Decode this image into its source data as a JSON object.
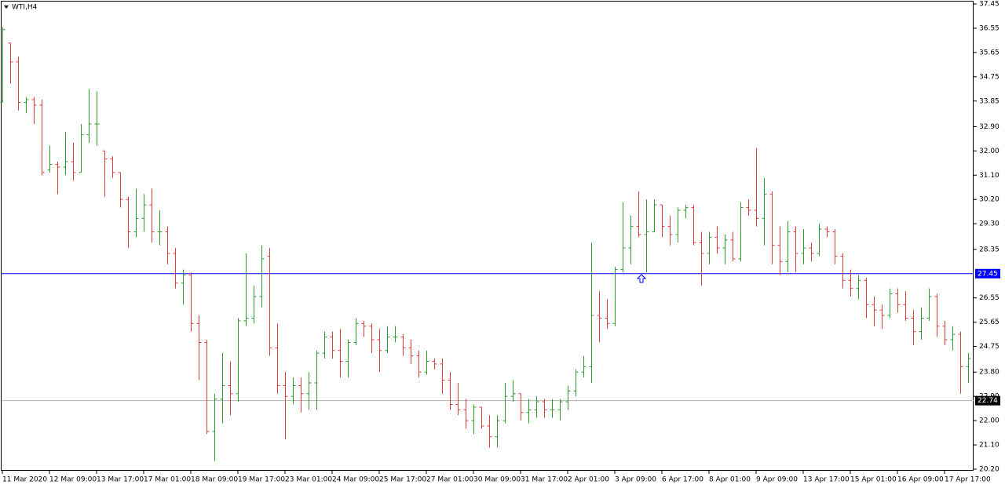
{
  "chart_data": {
    "type": "ohlc",
    "title": "WTI,H4",
    "up_color": "#2e9e2e",
    "down_color": "#e23b3b",
    "ylim": [
      20.2,
      37.45
    ],
    "yticks": [
      37.45,
      36.55,
      35.65,
      34.75,
      33.85,
      {
        "value": 32.9,
        "label": "32.90"
      },
      {
        "value": 32.0,
        "label": "32.00"
      },
      {
        "value": 31.1,
        "label": "31.10"
      },
      {
        "value": 30.2,
        "label": "30.20"
      },
      {
        "value": 29.3,
        "label": "29.30"
      },
      28.35,
      26.55,
      25.65,
      24.75,
      {
        "value": 23.8,
        "label": "23.80"
      },
      {
        "value": 22.9,
        "label": "22.90"
      },
      {
        "value": 22.0,
        "label": "22.00"
      },
      {
        "value": 21.1,
        "label": "21.10"
      },
      {
        "value": 20.2,
        "label": "20.20"
      }
    ],
    "hlines": [
      {
        "value": 27.45,
        "color": "#0000ff"
      },
      {
        "value": 22.74,
        "color": "#b0b0b0",
        "label_color": "#000000"
      }
    ],
    "categories": [
      "11 Mar 2020",
      null,
      null,
      null,
      null,
      null,
      "12 Mar 09:00",
      null,
      null,
      null,
      null,
      null,
      "13 Mar 17:00",
      null,
      null,
      null,
      null,
      null,
      "17 Mar 01:00",
      null,
      null,
      null,
      null,
      null,
      "18 Mar 09:00",
      null,
      null,
      null,
      null,
      null,
      "19 Mar 17:00",
      null,
      null,
      null,
      null,
      null,
      "23 Mar 01:00",
      null,
      null,
      null,
      null,
      null,
      "24 Mar 09:00",
      null,
      null,
      null,
      null,
      null,
      "25 Mar 17:00",
      null,
      null,
      null,
      null,
      null,
      "27 Mar 01:00",
      null,
      null,
      null,
      null,
      null,
      "30 Mar 09:00",
      null,
      null,
      null,
      null,
      null,
      "31 Mar 17:00",
      null,
      null,
      null,
      null,
      null,
      "2 Apr 01:00",
      null,
      null,
      null,
      null,
      null,
      "3 Apr 09:00",
      null,
      null,
      null,
      null,
      null,
      "6 Apr 17:00",
      null,
      null,
      null,
      null,
      null,
      "8 Apr 01:00",
      null,
      null,
      null,
      null,
      null,
      "9 Apr 09:00",
      null,
      null,
      null,
      null,
      null,
      "13 Apr 17:00",
      null,
      null,
      null,
      null,
      null,
      "15 Apr 01:00",
      null,
      null,
      null,
      null,
      null,
      "16 Apr 09:00",
      null,
      null,
      null,
      null,
      null,
      "17 Apr 17:00",
      null,
      null,
      null
    ],
    "bars": [
      [
        33.8,
        36.6,
        33.8,
        36.5
      ],
      [
        36.0,
        36.0,
        34.5,
        35.3
      ],
      [
        35.3,
        35.5,
        33.5,
        33.8
      ],
      [
        33.8,
        34.0,
        33.4,
        33.9
      ],
      [
        33.9,
        34.0,
        33.0,
        33.7
      ],
      [
        33.7,
        33.9,
        31.1,
        31.2
      ],
      [
        31.3,
        32.2,
        31.2,
        31.5
      ],
      [
        31.5,
        31.6,
        30.4,
        31.4
      ],
      [
        31.4,
        32.7,
        31.1,
        31.6
      ],
      [
        31.6,
        32.3,
        30.9,
        31.2
      ],
      [
        31.2,
        33.0,
        31.2,
        32.6
      ],
      [
        32.6,
        34.3,
        32.3,
        33.0
      ],
      [
        33.0,
        34.2,
        32.2,
        33.0
      ],
      [
        32.0,
        32.0,
        30.3,
        31.7
      ],
      [
        31.7,
        31.8,
        31.0,
        31.2
      ],
      [
        31.2,
        31.2,
        29.9,
        30.2
      ],
      [
        30.2,
        30.3,
        28.4,
        29.0
      ],
      [
        29.0,
        30.6,
        28.8,
        29.5
      ],
      [
        29.5,
        30.4,
        29.0,
        30.0
      ],
      [
        30.0,
        30.6,
        28.6,
        29.0
      ],
      [
        29.0,
        29.8,
        28.5,
        29.0
      ],
      [
        29.0,
        29.2,
        27.8,
        28.2
      ],
      [
        28.2,
        28.4,
        26.9,
        27.1
      ],
      [
        27.1,
        27.6,
        26.3,
        27.4
      ],
      [
        27.4,
        27.5,
        25.3,
        25.6
      ],
      [
        25.6,
        25.9,
        23.5,
        24.9
      ],
      [
        24.9,
        25.0,
        21.5,
        21.6
      ],
      [
        21.6,
        23.0,
        20.5,
        22.8
      ],
      [
        22.8,
        24.5,
        21.9,
        23.3
      ],
      [
        23.3,
        24.2,
        22.2,
        23.0
      ],
      [
        23.0,
        25.8,
        22.7,
        25.7
      ],
      [
        25.7,
        28.2,
        25.5,
        25.8
      ],
      [
        25.8,
        27.0,
        25.6,
        26.6
      ],
      [
        26.6,
        28.5,
        26.2,
        28.0
      ],
      [
        28.1,
        28.4,
        24.4,
        24.7
      ],
      [
        24.7,
        25.6,
        23.0,
        23.3
      ],
      [
        23.3,
        23.8,
        21.3,
        22.9
      ],
      [
        22.9,
        23.6,
        22.6,
        23.3
      ],
      [
        23.3,
        23.6,
        22.3,
        23.0
      ],
      [
        23.0,
        23.8,
        22.4,
        23.4
      ],
      [
        23.4,
        24.6,
        22.4,
        24.5
      ],
      [
        24.5,
        25.3,
        24.3,
        25.1
      ],
      [
        25.1,
        25.3,
        24.3,
        24.6
      ],
      [
        24.6,
        25.4,
        23.6,
        24.2
      ],
      [
        24.2,
        25.0,
        23.6,
        24.9
      ],
      [
        24.9,
        25.8,
        24.8,
        25.6
      ],
      [
        25.6,
        25.7,
        25.1,
        25.5
      ],
      [
        25.5,
        25.6,
        24.5,
        25.0
      ],
      [
        25.0,
        25.4,
        23.8,
        24.6
      ],
      [
        24.6,
        25.5,
        24.5,
        25.1
      ],
      [
        25.1,
        25.5,
        24.9,
        25.1
      ],
      [
        25.1,
        25.2,
        24.4,
        24.7
      ],
      [
        24.7,
        25.0,
        24.1,
        24.4
      ],
      [
        24.4,
        24.6,
        23.6,
        23.8
      ],
      [
        23.8,
        24.6,
        23.7,
        24.2
      ],
      [
        24.2,
        24.3,
        23.9,
        24.1
      ],
      [
        24.1,
        24.3,
        23.0,
        23.5
      ],
      [
        23.5,
        23.8,
        22.4,
        22.6
      ],
      [
        22.6,
        23.4,
        22.2,
        22.4
      ],
      [
        22.4,
        22.8,
        21.7,
        22.0
      ],
      [
        22.0,
        22.6,
        21.5,
        22.5
      ],
      [
        22.5,
        22.5,
        21.7,
        21.8
      ],
      [
        21.8,
        22.2,
        21.0,
        21.4
      ],
      [
        21.4,
        22.2,
        21.0,
        22.0
      ],
      [
        22.0,
        23.4,
        21.9,
        22.9
      ],
      [
        22.9,
        23.5,
        22.7,
        23.0
      ],
      [
        23.0,
        23.0,
        22.0,
        22.3
      ],
      [
        22.3,
        22.8,
        21.9,
        22.4
      ],
      [
        22.4,
        22.9,
        22.1,
        22.7
      ],
      [
        22.7,
        22.8,
        22.1,
        22.4
      ],
      [
        22.4,
        22.8,
        22.1,
        22.4
      ],
      [
        22.4,
        22.8,
        22.0,
        22.7
      ],
      [
        22.7,
        23.3,
        22.4,
        23.1
      ],
      [
        23.1,
        23.9,
        22.9,
        23.8
      ],
      [
        23.8,
        24.4,
        23.6,
        24.0
      ],
      [
        24.0,
        28.6,
        23.4,
        25.9
      ],
      [
        25.9,
        26.8,
        24.9,
        25.8
      ],
      [
        25.8,
        26.5,
        25.4,
        25.6
      ],
      [
        25.6,
        27.7,
        25.5,
        27.6
      ],
      [
        27.6,
        30.1,
        27.5,
        28.4
      ],
      [
        28.4,
        29.6,
        27.8,
        29.2
      ],
      [
        29.2,
        30.5,
        28.8,
        28.9
      ],
      [
        28.9,
        30.2,
        27.5,
        29.0
      ],
      [
        29.0,
        30.2,
        29.0,
        30.0
      ],
      [
        30.0,
        30.0,
        28.8,
        29.2
      ],
      [
        29.2,
        29.6,
        28.5,
        28.9
      ],
      [
        28.9,
        29.9,
        28.6,
        29.8
      ],
      [
        29.8,
        30.0,
        29.5,
        29.9
      ],
      [
        29.9,
        30.0,
        28.5,
        28.6
      ],
      [
        28.6,
        29.0,
        27.0,
        28.2
      ],
      [
        28.2,
        29.0,
        27.8,
        28.8
      ],
      [
        28.8,
        29.2,
        28.2,
        28.4
      ],
      [
        28.4,
        28.9,
        27.8,
        28.7
      ],
      [
        28.7,
        29.0,
        27.9,
        28.0
      ],
      [
        28.0,
        30.1,
        27.9,
        29.9
      ],
      [
        29.9,
        30.2,
        29.6,
        29.8
      ],
      [
        29.8,
        32.1,
        29.2,
        29.5
      ],
      [
        29.5,
        31.0,
        28.5,
        30.4
      ],
      [
        30.4,
        30.5,
        27.8,
        28.5
      ],
      [
        28.5,
        29.2,
        27.4,
        27.9
      ],
      [
        27.9,
        29.4,
        27.5,
        29.0
      ],
      [
        29.0,
        29.2,
        27.5,
        28.2
      ],
      [
        28.2,
        29.1,
        27.8,
        28.4
      ],
      [
        28.4,
        28.6,
        27.9,
        28.2
      ],
      [
        28.2,
        29.3,
        28.1,
        29.1
      ],
      [
        29.1,
        29.2,
        28.8,
        29.0
      ],
      [
        29.0,
        29.1,
        27.8,
        28.1
      ],
      [
        28.1,
        28.2,
        26.9,
        27.2
      ],
      [
        27.2,
        27.6,
        26.6,
        26.9
      ],
      [
        26.9,
        27.4,
        26.5,
        27.2
      ],
      [
        27.2,
        27.3,
        25.8,
        26.3
      ],
      [
        26.3,
        26.6,
        25.5,
        26.1
      ],
      [
        26.1,
        26.3,
        25.4,
        25.9
      ],
      [
        25.9,
        26.9,
        25.8,
        26.7
      ],
      [
        26.7,
        26.9,
        26.0,
        26.3
      ],
      [
        26.3,
        26.8,
        25.7,
        25.8
      ],
      [
        25.8,
        26.1,
        24.8,
        25.3
      ],
      [
        25.3,
        26.2,
        25.0,
        25.8
      ],
      [
        25.8,
        26.9,
        25.7,
        26.6
      ],
      [
        26.6,
        26.7,
        25.1,
        25.5
      ],
      [
        25.5,
        25.7,
        24.8,
        25.0
      ],
      [
        25.0,
        25.5,
        24.6,
        25.2
      ],
      [
        25.2,
        25.3,
        23.0,
        24.0
      ],
      [
        24.0,
        24.5,
        23.4,
        24.3
      ]
    ]
  }
}
